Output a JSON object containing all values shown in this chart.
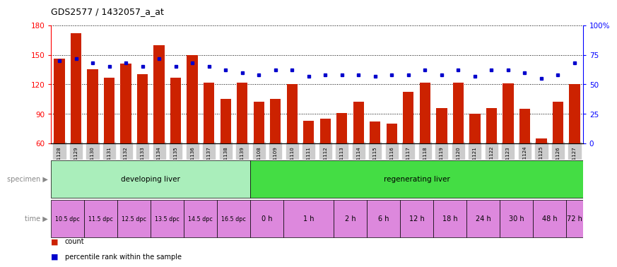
{
  "title": "GDS2577 / 1432057_a_at",
  "gsm_labels": [
    "GSM161128",
    "GSM161129",
    "GSM161130",
    "GSM161131",
    "GSM161132",
    "GSM161133",
    "GSM161134",
    "GSM161135",
    "GSM161136",
    "GSM161137",
    "GSM161138",
    "GSM161139",
    "GSM161108",
    "GSM161109",
    "GSM161110",
    "GSM161111",
    "GSM161112",
    "GSM161113",
    "GSM161114",
    "GSM161115",
    "GSM161116",
    "GSM161117",
    "GSM161118",
    "GSM161119",
    "GSM161120",
    "GSM161121",
    "GSM161122",
    "GSM161123",
    "GSM161124",
    "GSM161125",
    "GSM161126",
    "GSM161127"
  ],
  "bar_values": [
    146,
    172,
    135,
    127,
    141,
    130,
    160,
    127,
    150,
    122,
    105,
    122,
    102,
    105,
    120,
    83,
    85,
    91,
    102,
    82,
    80,
    112,
    122,
    96,
    122,
    90,
    96,
    121,
    95,
    65,
    102,
    120
  ],
  "percentile_values": [
    70,
    72,
    68,
    65,
    68,
    65,
    72,
    65,
    68,
    65,
    62,
    60,
    58,
    62,
    62,
    57,
    58,
    58,
    58,
    57,
    58,
    58,
    62,
    58,
    62,
    57,
    62,
    62,
    60,
    55,
    58,
    68
  ],
  "ylim_left": [
    60,
    180
  ],
  "ylim_right": [
    0,
    100
  ],
  "yticks_left": [
    60,
    90,
    120,
    150,
    180
  ],
  "yticks_right": [
    0,
    25,
    50,
    75,
    100
  ],
  "ytick_labels_right": [
    "0",
    "25",
    "50",
    "75",
    "100%"
  ],
  "bar_color": "#cc2200",
  "dot_color": "#0000cc",
  "specimen_row": [
    {
      "label": "developing liver",
      "start": 0,
      "end": 12,
      "color": "#aaeebb"
    },
    {
      "label": "regenerating liver",
      "start": 12,
      "end": 32,
      "color": "#44dd44"
    }
  ],
  "time_spans_developing": [
    {
      "label": "10.5 dpc",
      "start": 0,
      "end": 2
    },
    {
      "label": "11.5 dpc",
      "start": 2,
      "end": 4
    },
    {
      "label": "12.5 dpc",
      "start": 4,
      "end": 6
    },
    {
      "label": "13.5 dpc",
      "start": 6,
      "end": 8
    },
    {
      "label": "14.5 dpc",
      "start": 8,
      "end": 10
    },
    {
      "label": "16.5 dpc",
      "start": 10,
      "end": 12
    }
  ],
  "time_spans_regenerating": [
    {
      "label": "0 h",
      "start": 12,
      "end": 14
    },
    {
      "label": "1 h",
      "start": 14,
      "end": 17
    },
    {
      "label": "2 h",
      "start": 17,
      "end": 19
    },
    {
      "label": "6 h",
      "start": 19,
      "end": 21
    },
    {
      "label": "12 h",
      "start": 21,
      "end": 23
    },
    {
      "label": "18 h",
      "start": 23,
      "end": 25
    },
    {
      "label": "24 h",
      "start": 25,
      "end": 27
    },
    {
      "label": "30 h",
      "start": 27,
      "end": 29
    },
    {
      "label": "48 h",
      "start": 29,
      "end": 31
    },
    {
      "label": "72 h",
      "start": 31,
      "end": 32
    }
  ],
  "time_color": "#dd88dd",
  "legend_items": [
    {
      "color": "#cc2200",
      "label": "count"
    },
    {
      "color": "#0000cc",
      "label": "percentile rank within the sample"
    }
  ]
}
